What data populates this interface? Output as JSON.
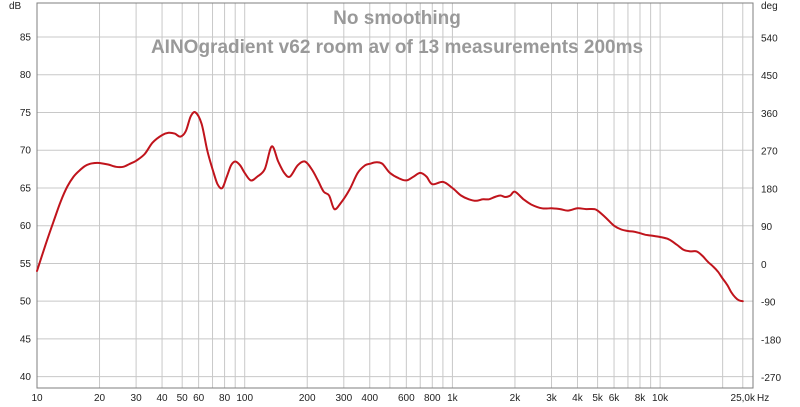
{
  "chart_data": {
    "type": "line",
    "title": "No smoothing",
    "subtitle": "AINOgradient v62 room av of 13 measurements 200ms",
    "xlabel": "Hz",
    "ylabel": "dB",
    "y2label": "deg",
    "xscale": "log",
    "xlim": [
      10,
      28000
    ],
    "ylim": [
      38.5,
      89.5
    ],
    "y2lim": [
      -295,
      623
    ],
    "grid": true,
    "legend": "none",
    "colors": {
      "series": "#c0141c",
      "grid": "#c8c8c8",
      "title": "#999999",
      "frame": "#7f7f7f"
    },
    "x_ticks": [
      {
        "v": 10,
        "label": "10"
      },
      {
        "v": 20,
        "label": "20"
      },
      {
        "v": 30,
        "label": "30"
      },
      {
        "v": 40,
        "label": "40"
      },
      {
        "v": 50,
        "label": "50"
      },
      {
        "v": 60,
        "label": "60"
      },
      {
        "v": 80,
        "label": "80"
      },
      {
        "v": 100,
        "label": "100"
      },
      {
        "v": 200,
        "label": "200"
      },
      {
        "v": 300,
        "label": "300"
      },
      {
        "v": 400,
        "label": "400"
      },
      {
        "v": 600,
        "label": "600"
      },
      {
        "v": 800,
        "label": "800"
      },
      {
        "v": 1000,
        "label": "1k"
      },
      {
        "v": 2000,
        "label": "2k"
      },
      {
        "v": 3000,
        "label": "3k"
      },
      {
        "v": 4000,
        "label": "4k"
      },
      {
        "v": 5000,
        "label": "5k"
      },
      {
        "v": 6000,
        "label": "6k"
      },
      {
        "v": 8000,
        "label": "8k"
      },
      {
        "v": 10000,
        "label": "10k"
      },
      {
        "v": 25000,
        "label": "25,0k"
      }
    ],
    "x_minor": [
      70,
      90,
      500,
      700,
      900,
      7000,
      9000,
      20000
    ],
    "y_ticks": [
      {
        "v": 40,
        "label": "40"
      },
      {
        "v": 45,
        "label": "45"
      },
      {
        "v": 50,
        "label": "50"
      },
      {
        "v": 55,
        "label": "55"
      },
      {
        "v": 60,
        "label": "60"
      },
      {
        "v": 65,
        "label": "65"
      },
      {
        "v": 70,
        "label": "70"
      },
      {
        "v": 75,
        "label": "75"
      },
      {
        "v": 80,
        "label": "80"
      },
      {
        "v": 85,
        "label": "85"
      }
    ],
    "y2_ticks": [
      {
        "v": -270,
        "label": "-270"
      },
      {
        "v": -180,
        "label": "-180"
      },
      {
        "v": -90,
        "label": "-90"
      },
      {
        "v": 0,
        "label": "0"
      },
      {
        "v": 90,
        "label": "90"
      },
      {
        "v": 180,
        "label": "180"
      },
      {
        "v": 270,
        "label": "270"
      },
      {
        "v": 360,
        "label": "360"
      },
      {
        "v": 450,
        "label": "450"
      },
      {
        "v": 540,
        "label": "540"
      }
    ],
    "series": [
      {
        "x": [
          10,
          11,
          12,
          13,
          14,
          15,
          16,
          17,
          18,
          19,
          20,
          22,
          24,
          26,
          28,
          30,
          33,
          36,
          40,
          43,
          46,
          49,
          52,
          55,
          58,
          62,
          66,
          70,
          74,
          78,
          82,
          86,
          90,
          95,
          100,
          107,
          115,
          125,
          135,
          145,
          155,
          165,
          180,
          195,
          210,
          225,
          240,
          255,
          270,
          290,
          320,
          350,
          380,
          400,
          430,
          460,
          500,
          550,
          600,
          650,
          700,
          750,
          800,
          900,
          1000,
          1100,
          1200,
          1300,
          1400,
          1500,
          1600,
          1700,
          1800,
          1900,
          2000,
          2200,
          2400,
          2700,
          3000,
          3300,
          3600,
          4000,
          4400,
          4800,
          5000,
          5500,
          6000,
          6500,
          7000,
          7500,
          8000,
          8500,
          9000,
          10000,
          11000,
          12000,
          13000,
          14000,
          15000,
          16000,
          17000,
          18000,
          19000,
          20000,
          21000,
          22000,
          23000,
          24000,
          25000
        ],
        "y": [
          54.0,
          57.5,
          60.5,
          63.2,
          65.2,
          66.5,
          67.3,
          67.9,
          68.2,
          68.3,
          68.3,
          68.1,
          67.8,
          67.8,
          68.2,
          68.6,
          69.5,
          71.0,
          72.0,
          72.3,
          72.2,
          71.8,
          72.5,
          74.5,
          75.0,
          73.5,
          70.0,
          67.5,
          65.5,
          65.0,
          66.5,
          68.0,
          68.5,
          68.0,
          67.0,
          66.0,
          66.5,
          67.5,
          70.5,
          68.5,
          67.0,
          66.5,
          68.0,
          68.5,
          67.5,
          66.0,
          64.5,
          64.0,
          62.2,
          63.0,
          64.8,
          67.0,
          68.0,
          68.2,
          68.4,
          68.2,
          67.0,
          66.3,
          66.0,
          66.5,
          67.0,
          66.5,
          65.5,
          65.8,
          65.0,
          64.0,
          63.5,
          63.3,
          63.5,
          63.5,
          63.8,
          64.0,
          63.8,
          64.0,
          64.5,
          63.5,
          62.8,
          62.3,
          62.3,
          62.2,
          62.0,
          62.3,
          62.2,
          62.2,
          62.0,
          61.0,
          60.0,
          59.5,
          59.3,
          59.2,
          59.0,
          58.8,
          58.7,
          58.5,
          58.2,
          57.5,
          56.8,
          56.6,
          56.6,
          56.0,
          55.2,
          54.6,
          53.9,
          53.0,
          52.2,
          51.2,
          50.5,
          50.1,
          50.0
        ]
      }
    ]
  }
}
